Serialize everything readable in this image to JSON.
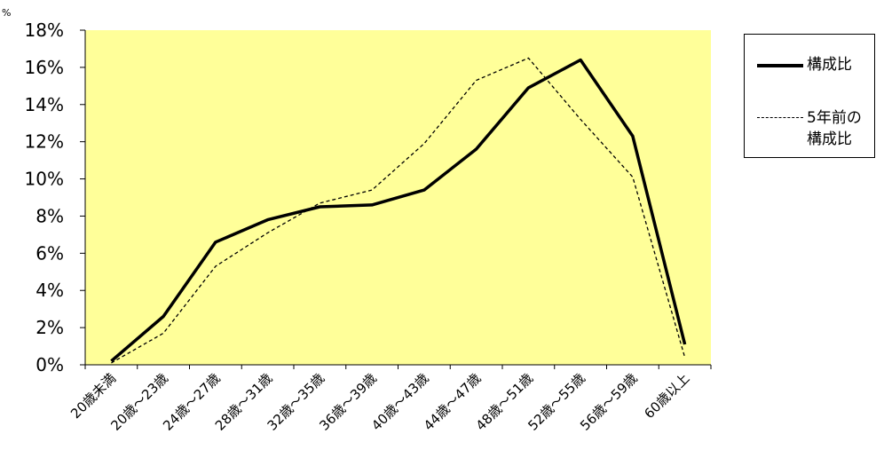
{
  "chart_data": {
    "type": "line",
    "unit_label": "%",
    "categories": [
      "20歳未満",
      "20歳～23歳",
      "24歳～27歳",
      "28歳～31歳",
      "32歳～35歳",
      "36歳～39歳",
      "40歳～43歳",
      "44歳～47歳",
      "48歳～51歳",
      "52歳～55歳",
      "56歳～59歳",
      "60歳以上"
    ],
    "ylim": [
      0,
      18
    ],
    "yticks": [
      "0%",
      "2%",
      "4%",
      "6%",
      "8%",
      "10%",
      "12%",
      "14%",
      "16%",
      "18%"
    ],
    "ytick_values": [
      0,
      2,
      4,
      6,
      8,
      10,
      12,
      14,
      16,
      18
    ],
    "plot_background": "#FFFF99",
    "grid": false,
    "legend_position": "right",
    "series": [
      {
        "name": "構成比",
        "style": "solid",
        "color": "#000000",
        "values": [
          0.2,
          2.6,
          6.6,
          7.8,
          8.5,
          8.6,
          9.4,
          11.6,
          14.9,
          16.4,
          12.3,
          1.1
        ]
      },
      {
        "name": "5年前の\n構成比",
        "style": "dashed",
        "color": "#000000",
        "values": [
          0.1,
          1.7,
          5.3,
          7.1,
          8.7,
          9.4,
          11.9,
          15.3,
          16.5,
          13.2,
          10.1,
          0.4
        ]
      }
    ]
  }
}
